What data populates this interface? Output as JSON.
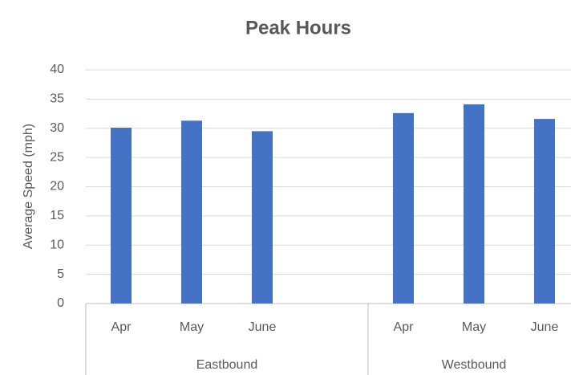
{
  "chart_data": {
    "type": "bar",
    "title": "Peak Hours",
    "y_label": "Average Speed (mph)",
    "categories": [
      "Apr",
      "May",
      "June",
      null,
      "Apr",
      "May",
      "June"
    ],
    "groups": [
      {
        "label": "Eastbound",
        "span": 4
      },
      {
        "label": "Westbound",
        "span": 3
      }
    ],
    "values": [
      30.1,
      31.3,
      29.5,
      null,
      32.6,
      34.1,
      31.6
    ],
    "color": "#4472c4",
    "ylim": [
      0,
      40
    ],
    "yticks": [
      0,
      5,
      10,
      15,
      20,
      25,
      30,
      35,
      40
    ],
    "grid": true
  }
}
